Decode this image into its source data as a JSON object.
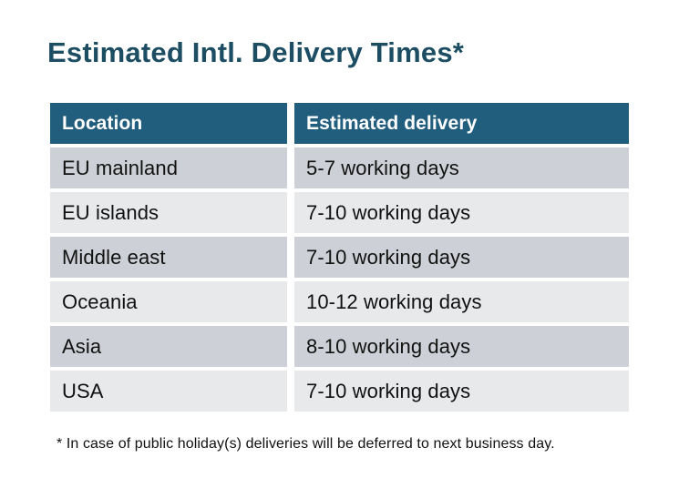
{
  "page": {
    "title": "Estimated Intl. Delivery Times*",
    "footnote": "* In case of public holiday(s) deliveries will be deferred to next business day."
  },
  "table": {
    "headers": [
      "Location",
      "Estimated delivery"
    ],
    "rows": [
      {
        "location": "EU mainland",
        "delivery": "5-7 working days"
      },
      {
        "location": "EU islands",
        "delivery": "7-10 working days"
      },
      {
        "location": "Middle east",
        "delivery": "7-10 working days"
      },
      {
        "location": "Oceania",
        "delivery": "10-12 working days"
      },
      {
        "location": "Asia",
        "delivery": "8-10 working days"
      },
      {
        "location": "USA",
        "delivery": "7-10 working days"
      }
    ]
  },
  "colors": {
    "title_text": "#1C4D62",
    "header_bg": "#215E7D",
    "header_text": "#FFFFFF",
    "row_alt_dark": "#CDD0D6",
    "row_alt_light": "#E7E9EB",
    "body_text": "#111111",
    "background": "#FFFFFF"
  }
}
